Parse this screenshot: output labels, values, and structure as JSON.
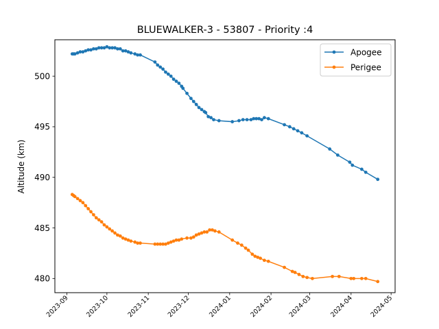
{
  "chart_data": {
    "type": "line",
    "title": "BLUEWALKER-3 - 53807 - Priority :4",
    "xlabel": "",
    "ylabel": "Altitude (km)",
    "x_axis_type": "date",
    "xlim": [
      "2023-08-23",
      "2024-05-04"
    ],
    "ylim": [
      478.6,
      503.6
    ],
    "x_ticks": [
      "2023-09",
      "2023-10",
      "2023-11",
      "2023-12",
      "2024-01",
      "2024-02",
      "2024-03",
      "2024-04",
      "2024-05"
    ],
    "y_ticks": [
      480,
      485,
      490,
      495,
      500
    ],
    "grid": false,
    "legend_position": "top-right",
    "series": [
      {
        "name": "Apogee",
        "color": "#1f77b4",
        "marker": "circle",
        "points": [
          [
            "2023-09-05",
            502.2
          ],
          [
            "2023-09-06",
            502.2
          ],
          [
            "2023-09-07",
            502.2
          ],
          [
            "2023-09-09",
            502.3
          ],
          [
            "2023-09-11",
            502.4
          ],
          [
            "2023-09-13",
            502.4
          ],
          [
            "2023-09-15",
            502.5
          ],
          [
            "2023-09-17",
            502.6
          ],
          [
            "2023-09-19",
            502.6
          ],
          [
            "2023-09-21",
            502.7
          ],
          [
            "2023-09-23",
            502.7
          ],
          [
            "2023-09-25",
            502.8
          ],
          [
            "2023-09-27",
            502.8
          ],
          [
            "2023-09-29",
            502.8
          ],
          [
            "2023-10-01",
            502.9
          ],
          [
            "2023-10-03",
            502.8
          ],
          [
            "2023-10-05",
            502.8
          ],
          [
            "2023-10-07",
            502.8
          ],
          [
            "2023-10-09",
            502.7
          ],
          [
            "2023-10-11",
            502.7
          ],
          [
            "2023-10-13",
            502.5
          ],
          [
            "2023-10-15",
            502.5
          ],
          [
            "2023-10-17",
            502.4
          ],
          [
            "2023-10-19",
            502.3
          ],
          [
            "2023-10-22",
            502.2
          ],
          [
            "2023-10-24",
            502.1
          ],
          [
            "2023-10-26",
            502.1
          ],
          [
            "2023-11-06",
            501.4
          ],
          [
            "2023-11-08",
            501.1
          ],
          [
            "2023-11-10",
            500.9
          ],
          [
            "2023-11-12",
            500.7
          ],
          [
            "2023-11-14",
            500.4
          ],
          [
            "2023-11-16",
            500.2
          ],
          [
            "2023-11-18",
            500.0
          ],
          [
            "2023-11-20",
            499.7
          ],
          [
            "2023-11-22",
            499.5
          ],
          [
            "2023-11-24",
            499.3
          ],
          [
            "2023-11-26",
            499.0
          ],
          [
            "2023-11-27",
            498.8
          ],
          [
            "2023-11-30",
            498.3
          ],
          [
            "2023-12-03",
            497.8
          ],
          [
            "2023-12-05",
            497.5
          ],
          [
            "2023-12-07",
            497.2
          ],
          [
            "2023-12-09",
            496.9
          ],
          [
            "2023-12-11",
            496.7
          ],
          [
            "2023-12-13",
            496.5
          ],
          [
            "2023-12-14",
            496.4
          ],
          [
            "2023-12-16",
            496.0
          ],
          [
            "2023-12-18",
            495.9
          ],
          [
            "2023-12-20",
            495.7
          ],
          [
            "2023-12-24",
            495.6
          ],
          [
            "2024-01-03",
            495.5
          ],
          [
            "2024-01-08",
            495.6
          ],
          [
            "2024-01-11",
            495.7
          ],
          [
            "2024-01-14",
            495.7
          ],
          [
            "2024-01-17",
            495.7
          ],
          [
            "2024-01-19",
            495.8
          ],
          [
            "2024-01-21",
            495.8
          ],
          [
            "2024-01-23",
            495.8
          ],
          [
            "2024-01-25",
            495.7
          ],
          [
            "2024-01-27",
            495.9
          ],
          [
            "2024-01-30",
            495.8
          ],
          [
            "2024-02-11",
            495.2
          ],
          [
            "2024-02-15",
            495.0
          ],
          [
            "2024-02-18",
            494.8
          ],
          [
            "2024-02-21",
            494.6
          ],
          [
            "2024-02-24",
            494.4
          ],
          [
            "2024-02-28",
            494.1
          ],
          [
            "2024-03-16",
            492.8
          ],
          [
            "2024-03-22",
            492.2
          ],
          [
            "2024-03-31",
            491.5
          ],
          [
            "2024-04-02",
            491.2
          ],
          [
            "2024-04-09",
            490.8
          ],
          [
            "2024-04-12",
            490.5
          ],
          [
            "2024-04-21",
            489.8
          ]
        ]
      },
      {
        "name": "Perigee",
        "color": "#ff7f0e",
        "marker": "circle",
        "points": [
          [
            "2023-09-05",
            488.3
          ],
          [
            "2023-09-06",
            488.2
          ],
          [
            "2023-09-07",
            488.1
          ],
          [
            "2023-09-09",
            487.9
          ],
          [
            "2023-09-11",
            487.7
          ],
          [
            "2023-09-13",
            487.5
          ],
          [
            "2023-09-15",
            487.2
          ],
          [
            "2023-09-17",
            486.9
          ],
          [
            "2023-09-19",
            486.6
          ],
          [
            "2023-09-21",
            486.3
          ],
          [
            "2023-09-23",
            486.0
          ],
          [
            "2023-09-25",
            485.8
          ],
          [
            "2023-09-27",
            485.6
          ],
          [
            "2023-09-29",
            485.3
          ],
          [
            "2023-10-01",
            485.1
          ],
          [
            "2023-10-03",
            484.9
          ],
          [
            "2023-10-05",
            484.7
          ],
          [
            "2023-10-07",
            484.5
          ],
          [
            "2023-10-09",
            484.3
          ],
          [
            "2023-10-11",
            484.2
          ],
          [
            "2023-10-13",
            484.0
          ],
          [
            "2023-10-15",
            483.9
          ],
          [
            "2023-10-17",
            483.8
          ],
          [
            "2023-10-19",
            483.7
          ],
          [
            "2023-10-22",
            483.6
          ],
          [
            "2023-10-24",
            483.5
          ],
          [
            "2023-10-26",
            483.5
          ],
          [
            "2023-11-06",
            483.4
          ],
          [
            "2023-11-08",
            483.4
          ],
          [
            "2023-11-10",
            483.4
          ],
          [
            "2023-11-12",
            483.4
          ],
          [
            "2023-11-14",
            483.4
          ],
          [
            "2023-11-16",
            483.5
          ],
          [
            "2023-11-18",
            483.6
          ],
          [
            "2023-11-20",
            483.7
          ],
          [
            "2023-11-22",
            483.8
          ],
          [
            "2023-11-24",
            483.8
          ],
          [
            "2023-11-26",
            483.9
          ],
          [
            "2023-11-30",
            484.0
          ],
          [
            "2023-12-03",
            484.0
          ],
          [
            "2023-12-05",
            484.1
          ],
          [
            "2023-12-07",
            484.3
          ],
          [
            "2023-12-09",
            484.4
          ],
          [
            "2023-12-11",
            484.5
          ],
          [
            "2023-12-13",
            484.6
          ],
          [
            "2023-12-15",
            484.6
          ],
          [
            "2023-12-17",
            484.8
          ],
          [
            "2023-12-19",
            484.8
          ],
          [
            "2023-12-21",
            484.7
          ],
          [
            "2023-12-24",
            484.6
          ],
          [
            "2024-01-03",
            483.8
          ],
          [
            "2024-01-07",
            483.5
          ],
          [
            "2024-01-10",
            483.3
          ],
          [
            "2024-01-13",
            483.0
          ],
          [
            "2024-01-15",
            482.8
          ],
          [
            "2024-01-18",
            482.4
          ],
          [
            "2024-01-20",
            482.2
          ],
          [
            "2024-01-22",
            482.1
          ],
          [
            "2024-01-24",
            482.0
          ],
          [
            "2024-01-27",
            481.8
          ],
          [
            "2024-01-30",
            481.7
          ],
          [
            "2024-02-11",
            481.1
          ],
          [
            "2024-02-17",
            480.7
          ],
          [
            "2024-02-19",
            480.6
          ],
          [
            "2024-02-22",
            480.4
          ],
          [
            "2024-02-25",
            480.2
          ],
          [
            "2024-02-28",
            480.1
          ],
          [
            "2024-03-03",
            480.0
          ],
          [
            "2024-03-18",
            480.2
          ],
          [
            "2024-03-23",
            480.2
          ],
          [
            "2024-04-01",
            480.0
          ],
          [
            "2024-04-03",
            480.0
          ],
          [
            "2024-04-09",
            480.0
          ],
          [
            "2024-04-12",
            480.0
          ],
          [
            "2024-04-21",
            479.7
          ]
        ]
      }
    ]
  }
}
